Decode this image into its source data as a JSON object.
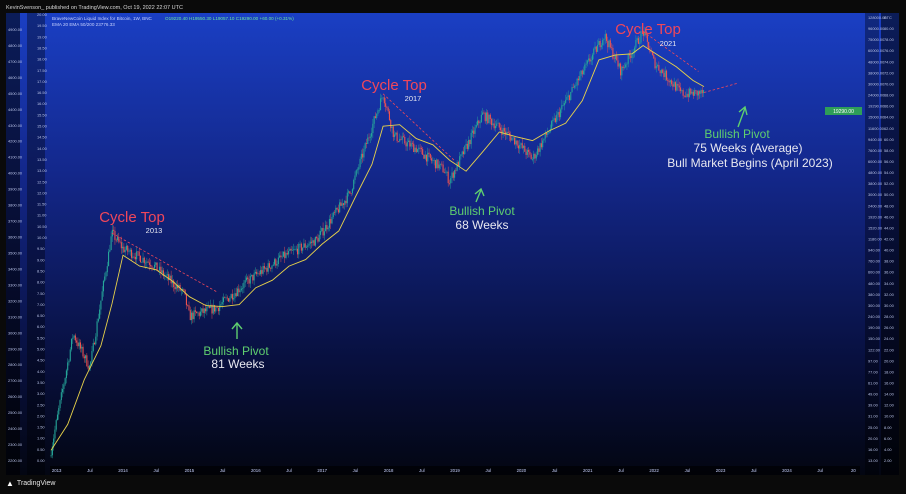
{
  "publish_line": "KevinSvenson_ published on TradingView.com, Oct 19, 2022 22:07 UTC",
  "legend": {
    "symbol_line": "BraveNewCoin Liquid Index for Bitcoin, 1W, BNC",
    "ohlc_line": "O19220.40 H19550.30 L19057.10 C19290.00 +60.00 (+0.31%)",
    "ema_line": "EMA 20 EMA 50/200 23776.33"
  },
  "price_tag": "19290.00",
  "footer_brand": "TradingView",
  "colors": {
    "annotation_red": "#f0475a",
    "annotation_green": "#5fcf6f",
    "annotation_white": "#e8e8f0",
    "ema_line": "#e8d24a",
    "up_candle": "#26a69a",
    "down_candle": "#ef5350",
    "price_tag_bg": "#2e9e58"
  },
  "annotations": {
    "top_2013": {
      "title": "Cycle Top",
      "year": "2013"
    },
    "top_2017": {
      "title": "Cycle Top",
      "year": "2017"
    },
    "top_2021": {
      "title": "Cycle Top",
      "year": "2021"
    },
    "pivot_2015": {
      "title": "Bullish Pivot",
      "sub": "81 Weeks"
    },
    "pivot_2019": {
      "title": "Bullish Pivot",
      "sub": "68 Weeks"
    },
    "pivot_2023": {
      "title": "Bullish Pivot",
      "line2": "75 Weeks (Average)",
      "line3": "Bull Market Begins (April 2023)"
    }
  },
  "chart_data": {
    "type": "line",
    "title": "BraveNewCoin Liquid Index for Bitcoin, 1W, BNC",
    "y_scale": "log",
    "ylim": [
      10,
      70000
    ],
    "x_tick_labels": [
      "2013",
      "Jul",
      "2014",
      "Jul",
      "2015",
      "Jul",
      "2016",
      "Jul",
      "2017",
      "Jul",
      "2018",
      "Jul",
      "2019",
      "Jul",
      "2020",
      "Jul",
      "2021",
      "Jul",
      "2022",
      "Jul",
      "2023",
      "Jul",
      "2024",
      "Jul",
      "20"
    ],
    "left_axis_labels": [
      "4900.00",
      "4800.00",
      "4700.00",
      "4600.00",
      "4500.00",
      "4400.00",
      "4300.00",
      "4200.00",
      "4100.00",
      "4000.00",
      "3900.00",
      "3800.00",
      "3700.00",
      "3600.00",
      "3500.00",
      "3400.00",
      "3300.00",
      "3200.00",
      "3100.00",
      "3000.00",
      "2900.00",
      "2800.00",
      "2700.00",
      "2600.00",
      "2500.00",
      "2400.00",
      "2300.00",
      "2200.00"
    ],
    "left_axis2_labels": [
      "20.00",
      "19.50",
      "19.00",
      "18.50",
      "18.00",
      "17.50",
      "17.00",
      "16.50",
      "16.00",
      "15.50",
      "15.00",
      "14.50",
      "14.00",
      "13.50",
      "13.00",
      "12.50",
      "12.00",
      "11.50",
      "11.00",
      "10.50",
      "10.00",
      "9.50",
      "9.00",
      "8.50",
      "8.00",
      "7.50",
      "7.00",
      "6.50",
      "6.00",
      "5.50",
      "5.00",
      "4.50",
      "4.00",
      "3.50",
      "3.00",
      "2.50",
      "2.00",
      "1.50",
      "1.00",
      "0.50",
      "0.00"
    ],
    "right_axis_labels": [
      "128000.00",
      "96000.00",
      "75000.00",
      "60000.00",
      "48000.00",
      "38000.00",
      "30000.00",
      "24000.00",
      "19290.00",
      "15000.00",
      "11600.00",
      "9400.00",
      "7600.00",
      "6000.00",
      "4800.00",
      "3800.00",
      "3000.00",
      "2400.00",
      "1920.00",
      "1520.00",
      "1180.00",
      "940.00",
      "760.00",
      "600.00",
      "480.00",
      "380.00",
      "300.00",
      "240.00",
      "190.00",
      "150.00",
      "122.00",
      "97.00",
      "77.00",
      "61.00",
      "49.00",
      "39.00",
      "31.00",
      "25.00",
      "20.00",
      "16.00",
      "13.00"
    ],
    "right_axis2_labels": [
      "BTC",
      "80.00",
      "78.00",
      "76.00",
      "74.00",
      "72.00",
      "70.00",
      "68.00",
      "66.00",
      "64.00",
      "62.00",
      "60.00",
      "58.00",
      "56.00",
      "54.00",
      "52.00",
      "50.00",
      "48.00",
      "46.00",
      "44.00",
      "42.00",
      "40.00",
      "38.00",
      "36.00",
      "34.00",
      "32.00",
      "30.00",
      "28.00",
      "26.00",
      "24.00",
      "22.00",
      "20.00",
      "18.00",
      "16.00",
      "14.00",
      "12.00",
      "10.00",
      "8.00",
      "6.00",
      "4.00",
      "2.00"
    ],
    "series": [
      {
        "name": "EMA 20",
        "points": [
          [
            "2012-12",
            13
          ],
          [
            "2013-03",
            22
          ],
          [
            "2013-06",
            55
          ],
          [
            "2013-09",
            110
          ],
          [
            "2013-11",
            260
          ],
          [
            "2014-01",
            700
          ],
          [
            "2014-04",
            560
          ],
          [
            "2014-07",
            520
          ],
          [
            "2014-10",
            410
          ],
          [
            "2015-01",
            300
          ],
          [
            "2015-04",
            250
          ],
          [
            "2015-07",
            245
          ],
          [
            "2015-10",
            255
          ],
          [
            "2016-01",
            360
          ],
          [
            "2016-04",
            420
          ],
          [
            "2016-07",
            560
          ],
          [
            "2016-10",
            640
          ],
          [
            "2017-01",
            880
          ],
          [
            "2017-04",
            1150
          ],
          [
            "2017-07",
            2300
          ],
          [
            "2017-10",
            4500
          ],
          [
            "2017-12",
            9800
          ],
          [
            "2018-03",
            10100
          ],
          [
            "2018-06",
            7600
          ],
          [
            "2018-09",
            6700
          ],
          [
            "2018-12",
            4900
          ],
          [
            "2019-03",
            3900
          ],
          [
            "2019-06",
            5800
          ],
          [
            "2019-09",
            8700
          ],
          [
            "2019-12",
            7900
          ],
          [
            "2020-03",
            7300
          ],
          [
            "2020-06",
            8900
          ],
          [
            "2020-09",
            10400
          ],
          [
            "2020-12",
            16500
          ],
          [
            "2021-03",
            38000
          ],
          [
            "2021-06",
            42000
          ],
          [
            "2021-09",
            43000
          ],
          [
            "2021-11",
            51000
          ],
          [
            "2022-02",
            41000
          ],
          [
            "2022-05",
            33000
          ],
          [
            "2022-08",
            25000
          ],
          [
            "2022-10",
            22000
          ]
        ]
      },
      {
        "name": "BTC",
        "points": [
          [
            "2012-12",
            13
          ],
          [
            "2013-04",
            140
          ],
          [
            "2013-07",
            70
          ],
          [
            "2013-11",
            1100
          ],
          [
            "2014-01",
            800
          ],
          [
            "2014-06",
            600
          ],
          [
            "2014-12",
            320
          ],
          [
            "2015-01",
            200
          ],
          [
            "2015-06",
            240
          ],
          [
            "2015-12",
            430
          ],
          [
            "2016-06",
            680
          ],
          [
            "2016-12",
            960
          ],
          [
            "2017-06",
            2500
          ],
          [
            "2017-12",
            19000
          ],
          [
            "2018-02",
            8000
          ],
          [
            "2018-06",
            6200
          ],
          [
            "2018-11",
            4000
          ],
          [
            "2018-12",
            3200
          ],
          [
            "2019-06",
            12500
          ],
          [
            "2019-12",
            7200
          ],
          [
            "2020-03",
            5000
          ],
          [
            "2020-12",
            29000
          ],
          [
            "2021-04",
            63000
          ],
          [
            "2021-07",
            30000
          ],
          [
            "2021-11",
            68000
          ],
          [
            "2022-01",
            36000
          ],
          [
            "2022-06",
            19000
          ],
          [
            "2022-10",
            19290
          ]
        ]
      }
    ],
    "projection_arrow": {
      "from": [
        "2022-10",
        19500
      ],
      "to": [
        "2023-04",
        23500
      ]
    }
  }
}
